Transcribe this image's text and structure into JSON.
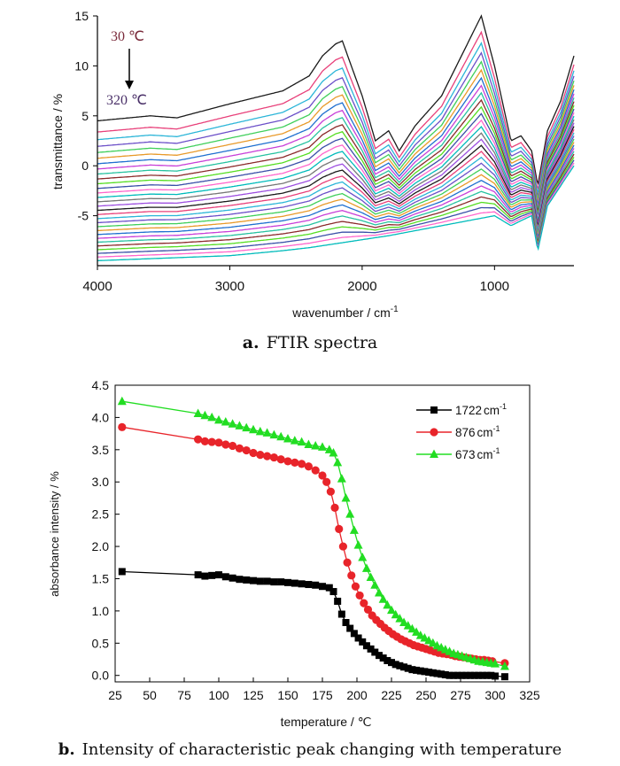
{
  "panel_a": {
    "ylabel": "transmittance / %",
    "xlabel": "wavenumber / cm",
    "xlabel_sup": "-1",
    "annotation_top": "30 ℃",
    "annotation_bottom": "320 ℃",
    "caption_letter": "a.",
    "caption_text": "FTIR spectra",
    "xticks": [
      4000,
      3000,
      2000,
      1000
    ],
    "yticks": [
      15,
      10,
      5,
      0,
      -5
    ]
  },
  "panel_b": {
    "ylabel": "absorbance intensity / %",
    "xlabel": "temperature / ℃",
    "caption_letter": "b.",
    "caption_text": "Intensity of characteristic peak changing with temperature",
    "xticks": [
      25,
      50,
      75,
      100,
      125,
      150,
      175,
      200,
      225,
      250,
      275,
      300,
      325
    ],
    "yticks": [
      0.0,
      0.5,
      1.0,
      1.5,
      2.0,
      2.5,
      3.0,
      3.5,
      4.0,
      4.5
    ]
  },
  "chart_data": [
    {
      "type": "line",
      "title": "",
      "xlabel": "wavenumber / cm-1",
      "ylabel": "transmittance / %",
      "xlim": [
        4000,
        400
      ],
      "ylim": [
        -10,
        15
      ],
      "x_reversed": true,
      "annotations": [
        "30 ℃",
        "320 ℃"
      ],
      "series_count_approx": 30,
      "note_series": "family of spectra from 30 ℃ (top) to 320 ℃ (bottom)",
      "top_spectrum": {
        "x": [
          4000,
          3600,
          3400,
          3000,
          2600,
          2400,
          2300,
          2200,
          2150,
          2000,
          1900,
          1800,
          1720,
          1600,
          1400,
          1250,
          1100,
          1000,
          876,
          800,
          720,
          673,
          600,
          500,
          400
        ],
        "y": [
          4.5,
          5.0,
          4.8,
          6.2,
          7.5,
          9.0,
          11.0,
          12.2,
          12.5,
          7.0,
          2.5,
          3.5,
          1.5,
          4.0,
          7.0,
          11.0,
          15.0,
          10.0,
          2.5,
          3.0,
          1.5,
          -2.0,
          3.5,
          6.5,
          11.0
        ]
      },
      "bottom_spectrum": {
        "x": [
          4000,
          3600,
          3000,
          2600,
          2400,
          2200,
          2000,
          1800,
          1720,
          1600,
          1400,
          1200,
          1000,
          876,
          800,
          720,
          673,
          600,
          500,
          400
        ],
        "y": [
          -9.5,
          -9.3,
          -9.0,
          -8.5,
          -8.2,
          -7.8,
          -7.4,
          -7.0,
          -6.8,
          -6.5,
          -6.0,
          -5.5,
          -5.0,
          -6.0,
          -5.5,
          -5.0,
          -8.5,
          -4.0,
          -2.0,
          0.0
        ]
      }
    },
    {
      "type": "line",
      "title": "",
      "xlabel": "temperature / ℃",
      "ylabel": "absorbance intensity / %",
      "xlim": [
        25,
        325
      ],
      "ylim": [
        -0.1,
        4.5
      ],
      "legend_position": "top-right",
      "series": [
        {
          "name": "1722",
          "unit": "cm",
          "unit_sup": "-1",
          "color": "#000000",
          "marker": "square",
          "x": [
            30,
            85,
            90,
            95,
            100,
            105,
            110,
            115,
            120,
            125,
            130,
            135,
            140,
            145,
            150,
            155,
            160,
            165,
            170,
            175,
            180,
            183,
            186,
            189,
            192,
            195,
            198,
            201,
            204,
            207,
            210,
            213,
            216,
            219,
            222,
            225,
            228,
            231,
            234,
            237,
            240,
            243,
            246,
            249,
            252,
            255,
            258,
            261,
            264,
            267,
            270,
            273,
            276,
            279,
            282,
            285,
            288,
            291,
            294,
            297,
            300,
            307
          ],
          "y": [
            1.61,
            1.56,
            1.54,
            1.55,
            1.56,
            1.53,
            1.51,
            1.49,
            1.48,
            1.47,
            1.46,
            1.46,
            1.45,
            1.45,
            1.44,
            1.43,
            1.42,
            1.41,
            1.4,
            1.38,
            1.36,
            1.3,
            1.15,
            0.95,
            0.82,
            0.73,
            0.65,
            0.58,
            0.52,
            0.46,
            0.41,
            0.36,
            0.31,
            0.27,
            0.23,
            0.2,
            0.17,
            0.15,
            0.13,
            0.11,
            0.09,
            0.08,
            0.07,
            0.06,
            0.05,
            0.04,
            0.03,
            0.02,
            0.01,
            0.0,
            0.0,
            0.0,
            0.0,
            0.0,
            0.0,
            0.0,
            0.0,
            0.0,
            0.0,
            0.0,
            -0.01,
            -0.02
          ]
        },
        {
          "name": "876",
          "unit": "cm",
          "unit_sup": "-1",
          "color": "#e8242a",
          "marker": "circle",
          "x": [
            30,
            85,
            90,
            95,
            100,
            105,
            110,
            115,
            120,
            125,
            130,
            135,
            140,
            145,
            150,
            155,
            160,
            165,
            170,
            175,
            178,
            181,
            184,
            187,
            190,
            193,
            196,
            199,
            202,
            205,
            208,
            211,
            214,
            217,
            220,
            223,
            226,
            229,
            232,
            235,
            238,
            241,
            244,
            247,
            250,
            253,
            256,
            259,
            262,
            265,
            268,
            271,
            274,
            277,
            280,
            283,
            286,
            289,
            292,
            295,
            298,
            307
          ],
          "y": [
            3.85,
            3.66,
            3.63,
            3.62,
            3.61,
            3.58,
            3.56,
            3.52,
            3.49,
            3.45,
            3.42,
            3.4,
            3.38,
            3.35,
            3.32,
            3.3,
            3.28,
            3.24,
            3.18,
            3.1,
            3.0,
            2.85,
            2.6,
            2.27,
            2.0,
            1.75,
            1.55,
            1.38,
            1.24,
            1.12,
            1.02,
            0.93,
            0.86,
            0.8,
            0.74,
            0.69,
            0.64,
            0.6,
            0.56,
            0.53,
            0.5,
            0.47,
            0.45,
            0.43,
            0.41,
            0.39,
            0.37,
            0.35,
            0.34,
            0.33,
            0.32,
            0.3,
            0.29,
            0.28,
            0.27,
            0.26,
            0.25,
            0.24,
            0.24,
            0.23,
            0.22,
            0.19
          ]
        },
        {
          "name": "673",
          "unit": "cm",
          "unit_sup": "-1",
          "color": "#22dd22",
          "marker": "triangle",
          "x": [
            30,
            85,
            90,
            95,
            100,
            105,
            110,
            115,
            120,
            125,
            130,
            135,
            140,
            145,
            150,
            155,
            160,
            165,
            170,
            175,
            180,
            183,
            186,
            189,
            192,
            195,
            198,
            201,
            204,
            207,
            210,
            213,
            216,
            219,
            222,
            225,
            228,
            231,
            234,
            237,
            240,
            243,
            246,
            249,
            252,
            255,
            258,
            261,
            264,
            267,
            270,
            273,
            276,
            279,
            282,
            285,
            288,
            291,
            294,
            297,
            300,
            307
          ],
          "y": [
            4.25,
            4.06,
            4.03,
            4.0,
            3.96,
            3.93,
            3.9,
            3.87,
            3.84,
            3.81,
            3.78,
            3.76,
            3.73,
            3.7,
            3.67,
            3.64,
            3.62,
            3.58,
            3.56,
            3.54,
            3.5,
            3.45,
            3.3,
            3.05,
            2.75,
            2.5,
            2.25,
            2.02,
            1.83,
            1.66,
            1.52,
            1.4,
            1.28,
            1.18,
            1.09,
            1.01,
            0.94,
            0.88,
            0.82,
            0.77,
            0.72,
            0.67,
            0.62,
            0.58,
            0.54,
            0.5,
            0.46,
            0.43,
            0.4,
            0.37,
            0.34,
            0.32,
            0.3,
            0.28,
            0.26,
            0.24,
            0.22,
            0.21,
            0.2,
            0.19,
            0.18,
            0.14
          ]
        }
      ]
    }
  ]
}
